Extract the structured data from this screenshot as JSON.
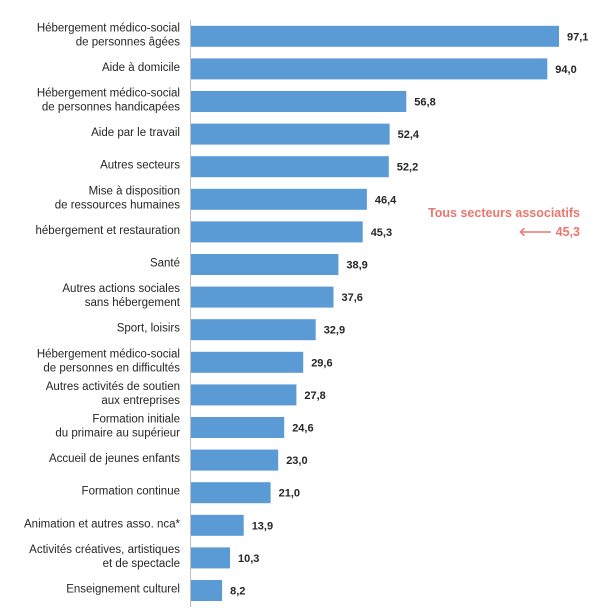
{
  "chart_data": {
    "type": "bar",
    "orientation": "horizontal",
    "bar_color": "#5B9BD5",
    "categories": [
      [
        "Hébergement médico-social",
        "de personnes âgées"
      ],
      [
        "Aide à domicile"
      ],
      [
        "Hébergement médico-social",
        "de personnes handicapées"
      ],
      [
        "Aide par le travail"
      ],
      [
        "Autres secteurs"
      ],
      [
        "Mise à disposition",
        "de ressources humaines"
      ],
      [
        "hébergement et restauration"
      ],
      [
        "Santé"
      ],
      [
        "Autres actions sociales",
        "sans hébergement"
      ],
      [
        "Sport, loisirs"
      ],
      [
        "Hébergement médico-social",
        "de personnes en difficultés"
      ],
      [
        "Autres activités de soutien",
        "aux entreprises"
      ],
      [
        "Formation initiale",
        "du primaire au supérieur"
      ],
      [
        "Accueil de jeunes enfants"
      ],
      [
        "Formation continue"
      ],
      [
        "Animation et autres asso. nca*"
      ],
      [
        "Activités créatives, artistiques",
        "et de spectacle"
      ],
      [
        "Enseignement culturel"
      ]
    ],
    "values": [
      97.1,
      94.0,
      56.8,
      52.4,
      52.2,
      46.4,
      45.3,
      38.9,
      37.6,
      32.9,
      29.6,
      27.8,
      24.6,
      23.0,
      21.0,
      13.9,
      10.3,
      8.2
    ],
    "value_labels": [
      "97,1",
      "94,0",
      "56,8",
      "52,4",
      "52,2",
      "46,4",
      "45,3",
      "38,9",
      "37,6",
      "32,9",
      "29,6",
      "27,8",
      "24,6",
      "23,0",
      "21,0",
      "13,9",
      "10,3",
      "8,2"
    ],
    "xlim": [
      0,
      100
    ],
    "grid": false,
    "annotation": {
      "line1": "Tous secteurs associatifs",
      "line2": "🡐 45,3",
      "color": "#E8786E"
    }
  }
}
